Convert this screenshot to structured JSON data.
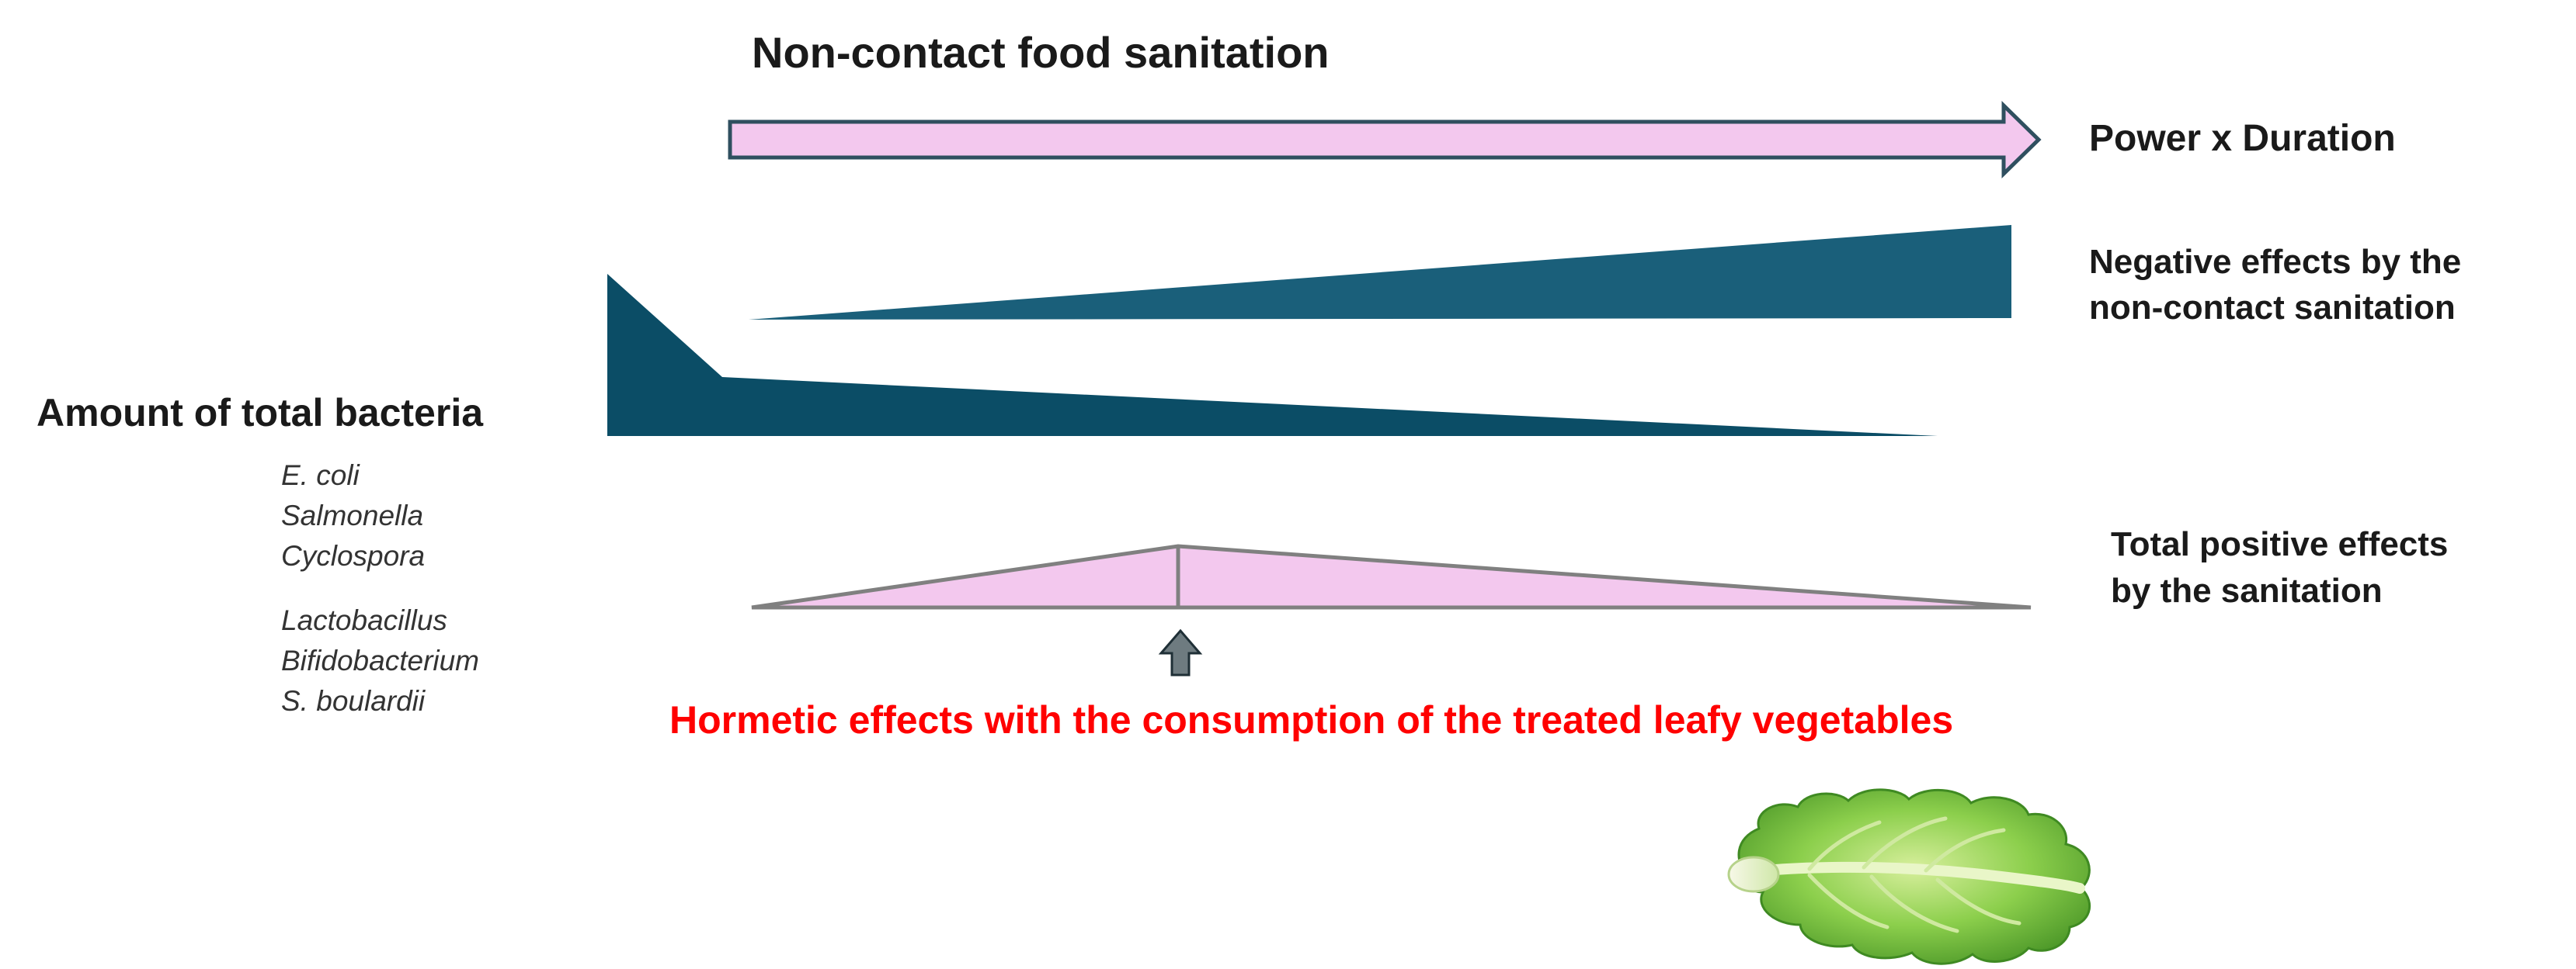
{
  "title": "Non-contact food sanitation",
  "arrow_label": "Power x Duration",
  "negative_effects": {
    "line1": "Negative effects by the",
    "line2": "non-contact sanitation"
  },
  "bacteria": {
    "label": "Amount of total bacteria",
    "pathogens": [
      "E. coli",
      "Salmonella",
      "Cyclospora"
    ],
    "probiotics": [
      "Lactobacillus",
      "Bifidobacterium",
      "S. boulardii"
    ]
  },
  "positive_effects": {
    "line1": "Total positive effects",
    "line2": "by the sanitation"
  },
  "hormetic_label": "Hormetic effects with the consumption of the treated leafy vegetables",
  "colors": {
    "dark_teal": "#0b4d66",
    "teal": "#1a5f7a",
    "pink_fill": "#f3c8ee",
    "arrow_outline": "#2f4f5f",
    "gray_stroke": "#808080",
    "small_arrow": "#6e7b80",
    "red_text": "#ff0000",
    "lettuce": "#7cc24a"
  },
  "icons": {
    "big_arrow": "right-arrow-icon",
    "small_arrow": "up-arrow-icon",
    "lettuce": "lettuce-leaf-icon"
  }
}
